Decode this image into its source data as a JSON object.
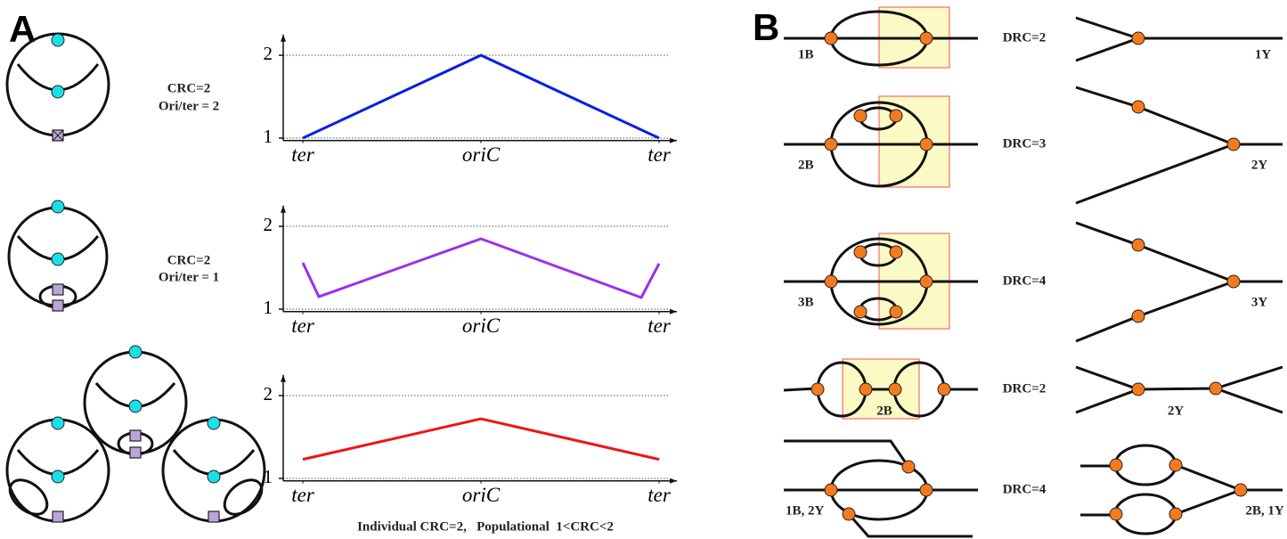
{
  "panel_labels": [
    "A",
    "B"
  ],
  "chart_data": [
    {
      "type": "line",
      "x": [
        0,
        50,
        100
      ],
      "series": [
        {
          "color": "#0a1ee6",
          "values": [
            1,
            2,
            1
          ]
        }
      ],
      "xlim": [
        -5.5,
        105
      ],
      "xticks": [
        {
          "value": 0,
          "label": "ter"
        },
        {
          "value": 50,
          "label": "oriC"
        },
        {
          "value": 100,
          "label": "ter"
        }
      ],
      "ylim": [
        0.97,
        2.25
      ],
      "yticks": [
        1,
        2
      ],
      "grid": true
    },
    {
      "type": "line",
      "x": [
        0,
        4.5,
        50,
        95,
        100
      ],
      "series": [
        {
          "color": "#9b2ff0",
          "values": [
            1.56,
            1.15,
            1.85,
            1.14,
            1.55
          ]
        }
      ],
      "xlim": [
        -5.5,
        105
      ],
      "xticks": [
        {
          "value": 0,
          "label": "ter"
        },
        {
          "value": 50,
          "label": "oriC"
        },
        {
          "value": 100,
          "label": "ter"
        }
      ],
      "ylim": [
        0.97,
        2.25
      ],
      "yticks": [
        1,
        2
      ],
      "grid": true
    },
    {
      "type": "line",
      "x": [
        0,
        50,
        100
      ],
      "series": [
        {
          "color": "#f01414",
          "values": [
            1.23,
            1.72,
            1.23
          ]
        }
      ],
      "xlim": [
        -5.5,
        105
      ],
      "xticks": [
        {
          "value": 0,
          "label": "ter"
        },
        {
          "value": 50,
          "label": "oriC"
        },
        {
          "value": 100,
          "label": "ter"
        }
      ],
      "ylim": [
        0.97,
        2.25
      ],
      "yticks": [
        1,
        2
      ],
      "grid": true,
      "caption": "Individual CRC=2,   Populational  1<CRC<2"
    }
  ],
  "panel_a_notes": [
    [
      "CRC=2",
      "Ori/ter = 2"
    ],
    [
      "CRC=2",
      "Ori/ter = 1"
    ]
  ],
  "panel_b_rows": [
    {
      "left": "1B",
      "drc": "DRC=2",
      "right": "1Y"
    },
    {
      "left": "2B",
      "drc": "DRC=3",
      "right": "2Y"
    },
    {
      "left": "3B",
      "drc": "DRC=4",
      "right": "3Y"
    },
    {
      "left": "2B",
      "drc": "DRC=2",
      "right": "2Y"
    },
    {
      "left": "1B, 2Y",
      "drc": "DRC=4",
      "right": "2B, 1Y"
    }
  ]
}
